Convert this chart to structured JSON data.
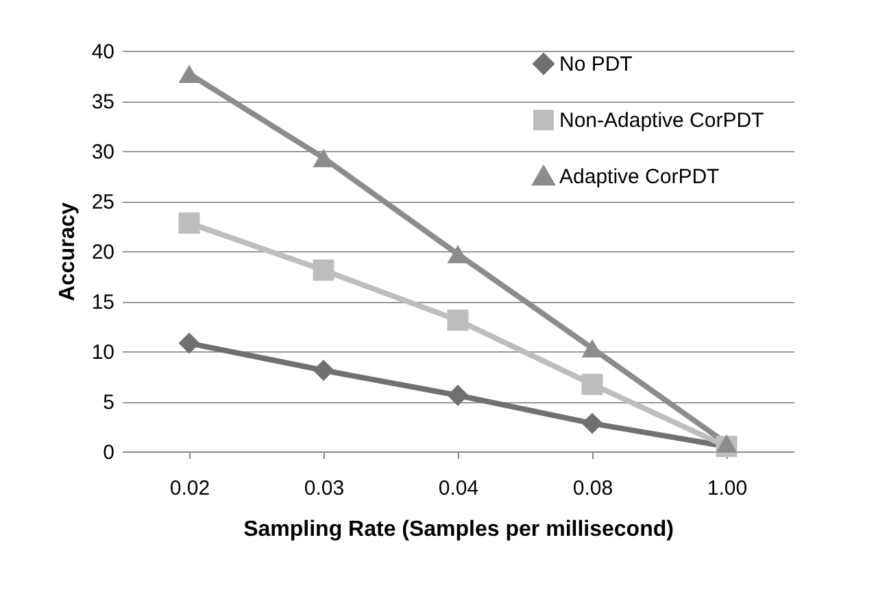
{
  "chart_data": {
    "type": "line",
    "xlabel": "Sampling Rate (Samples per millisecond)",
    "ylabel": "Accuracy",
    "categories": [
      "0.02",
      "0.03",
      "0.04",
      "0.08",
      "1.00"
    ],
    "series": [
      {
        "name": "No PDT",
        "color": "#707070",
        "marker": "diamond",
        "values": [
          10.8,
          8.1,
          5.6,
          2.8,
          0.5
        ]
      },
      {
        "name": "Non-Adaptive CorPDT",
        "color": "#bdbdbd",
        "marker": "square",
        "values": [
          22.8,
          18.1,
          13.1,
          6.7,
          0.5
        ]
      },
      {
        "name": "Adaptive CorPDT",
        "color": "#8c8c8c",
        "marker": "triangle",
        "values": [
          37.7,
          29.3,
          19.7,
          10.3,
          0.8
        ]
      }
    ],
    "ylim": [
      0,
      40
    ],
    "yticks": [
      0,
      5,
      10,
      15,
      20,
      25,
      30,
      35,
      40
    ],
    "grid": "y",
    "legend": "top right",
    "line_style": "solid"
  }
}
